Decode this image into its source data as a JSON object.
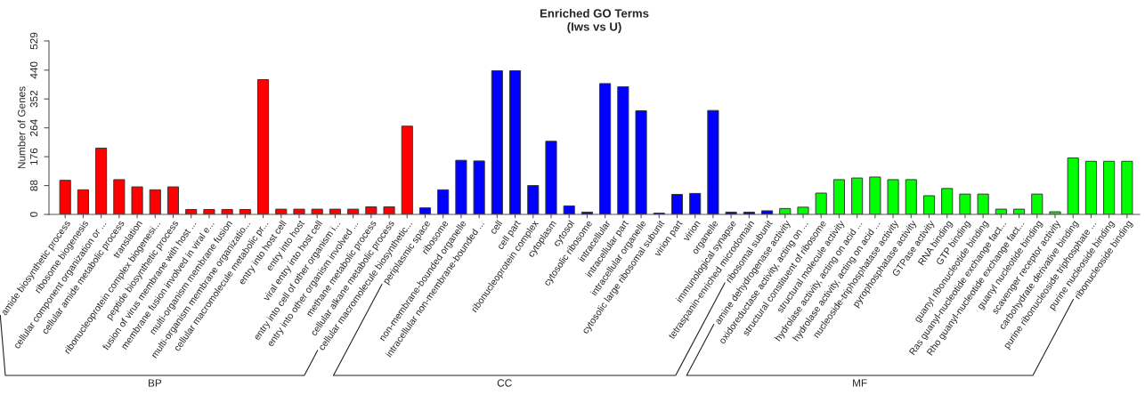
{
  "chart_data": {
    "type": "bar",
    "title": "Enriched GO Terms",
    "subtitle": "(Iws vs U)",
    "ylabel": "Number of Genes",
    "categories": [
      "amide biosynthetic process",
      "ribosome biogenesis",
      "cellular component organization or ...",
      "cellular amide metabolic process",
      "translation",
      "ribonucleoprotein complex biogenesi...",
      "peptide biosynthetic process",
      "fusion of virus membrane with host ...",
      "membrane fusion involved in viral e...",
      "multi-organism membrane fusion",
      "multi-organism membrane organizatio...",
      "cellular macromolecule metabolic pr...",
      "entry into host cell",
      "entry into host",
      "viral entry into host cell",
      "entry into cell of other organism i...",
      "entry into other organism involved ...",
      "methane metabolic process",
      "cellular alkane metabolic process",
      "cellular macromolecule biosynthetic...",
      "periplasmic space",
      "ribosome",
      "non-membrane-bounded organelle",
      "intracellular non-membrane-bounded ...",
      "cell",
      "cell part",
      "ribonucleoprotein complex",
      "cytoplasm",
      "cytosol",
      "cytosolic ribosome",
      "intracellular",
      "intracellular part",
      "intracellular organelle",
      "cytosolic large ribosomal subunit",
      "virion part",
      "virion",
      "organelle",
      "immunological synapse",
      "tetraspanin-enriched microdomain",
      "ribosomal subunit",
      "amine dehydrogenase activity",
      "oxidoreductase activity, acting on ...",
      "structural constituent of ribosome",
      "structural molecule activity",
      "hydrolase activity, acting on acid ...",
      "hydrolase activity, acting on acid ...",
      "nucleoside-triphosphatase activity",
      "pyrophosphatase activity",
      "GTPase activity",
      "RNA binding",
      "GTP binding",
      "guanyl ribonucleotide binding",
      "Ras guanyl-nucleotide exchange fact...",
      "Rho guanyl-nucleotide exchange fact...",
      "guanyl nucleotide binding",
      "scavenger receptor activity",
      "carbohydrate derivative binding",
      "purine ribonucleoside triphosphate ...",
      "purine nucleoside binding",
      "ribonucleoside binding"
    ],
    "series": [
      {
        "color": "#ff0000",
        "values": [
          104,
          75,
          202,
          106,
          84,
          75,
          84,
          15,
          15,
          15,
          15,
          411,
          16,
          16,
          16,
          16,
          16,
          23,
          23,
          269,
          null,
          null,
          null,
          null,
          null,
          null,
          null,
          null,
          null,
          null,
          null,
          null,
          null,
          null,
          null,
          null,
          null,
          null,
          null,
          null,
          null,
          null,
          null,
          null,
          null,
          null,
          null,
          null,
          null,
          null,
          null,
          null,
          null,
          null,
          null,
          null,
          null,
          null,
          null,
          null
        ]
      },
      {
        "color": "#0000ff",
        "values": [
          null,
          null,
          null,
          null,
          null,
          null,
          null,
          null,
          null,
          null,
          null,
          null,
          null,
          null,
          null,
          null,
          null,
          null,
          null,
          null,
          20,
          75,
          165,
          163,
          438,
          438,
          88,
          223,
          26,
          7,
          399,
          389,
          316,
          4,
          61,
          64,
          317,
          7,
          7,
          11,
          null,
          null,
          null,
          null,
          null,
          null,
          null,
          null,
          null,
          null,
          null,
          null,
          null,
          null,
          null,
          null,
          null,
          null,
          null,
          null
        ]
      },
      {
        "color": "#00ff00",
        "values": [
          null,
          null,
          null,
          null,
          null,
          null,
          null,
          null,
          null,
          null,
          null,
          null,
          null,
          null,
          null,
          null,
          null,
          null,
          null,
          null,
          null,
          null,
          null,
          null,
          null,
          null,
          null,
          null,
          null,
          null,
          null,
          null,
          null,
          null,
          null,
          null,
          null,
          null,
          null,
          null,
          18,
          22,
          65,
          106,
          111,
          114,
          106,
          106,
          57,
          79,
          62,
          62,
          16,
          16,
          62,
          8,
          172,
          162,
          162,
          162
        ]
      }
    ],
    "annotations": [
      "BP",
      "CC",
      "MF"
    ],
    "ylim": [
      0,
      529
    ],
    "yticks": [
      0,
      88,
      176,
      264,
      352,
      440,
      529
    ],
    "grid": false,
    "legend": false
  }
}
